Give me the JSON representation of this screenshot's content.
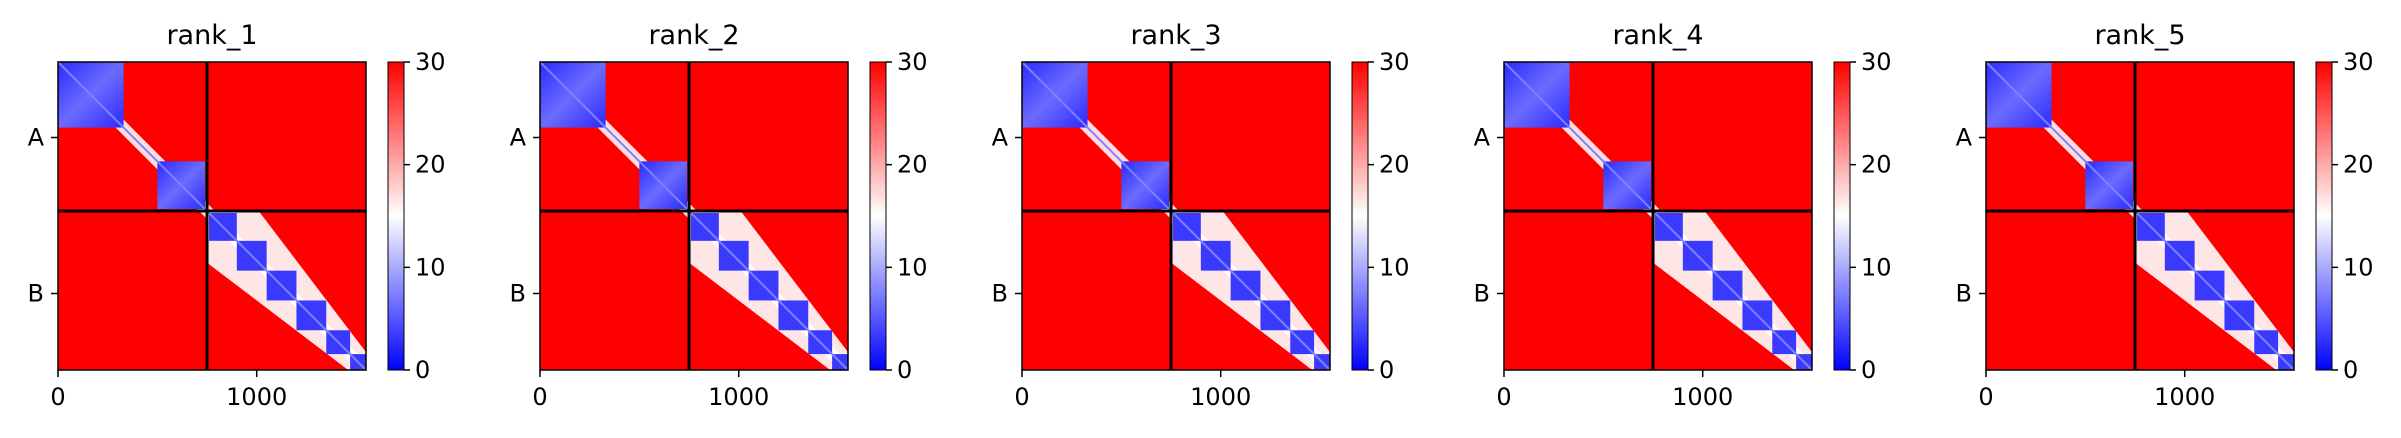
{
  "chart_data": {
    "type": "heatmap",
    "colormap": {
      "low": "#0000ff",
      "mid": "#ffffff",
      "high": "#ff0000"
    },
    "color_range": [
      0,
      30
    ],
    "colorbar_ticks": [
      "0",
      "10",
      "20",
      "30"
    ],
    "x_ticks": [
      {
        "value": 0,
        "label": "0"
      },
      {
        "value": 1000,
        "label": "1000"
      }
    ],
    "y_ticks": [
      {
        "value": 380,
        "label": "A"
      },
      {
        "value": 1165,
        "label": "B"
      }
    ],
    "matrix_size": 1550,
    "chain_boundary": 750,
    "panels": [
      {
        "title": "rank_1",
        "a_blocks": [
          [
            0,
            330
          ],
          [
            500,
            740
          ]
        ],
        "b_blocks": [
          [
            760,
            900
          ],
          [
            900,
            1050
          ],
          [
            1050,
            1200
          ],
          [
            1200,
            1350
          ],
          [
            1350,
            1470
          ],
          [
            1470,
            1550
          ]
        ]
      },
      {
        "title": "rank_2",
        "a_blocks": [
          [
            0,
            330
          ],
          [
            500,
            740
          ]
        ],
        "b_blocks": [
          [
            760,
            900
          ],
          [
            900,
            1050
          ],
          [
            1050,
            1200
          ],
          [
            1200,
            1350
          ],
          [
            1350,
            1470
          ],
          [
            1470,
            1550
          ]
        ]
      },
      {
        "title": "rank_3",
        "a_blocks": [
          [
            0,
            330
          ],
          [
            500,
            740
          ]
        ],
        "b_blocks": [
          [
            760,
            900
          ],
          [
            900,
            1050
          ],
          [
            1050,
            1200
          ],
          [
            1200,
            1350
          ],
          [
            1350,
            1470
          ],
          [
            1470,
            1550
          ]
        ]
      },
      {
        "title": "rank_4",
        "a_blocks": [
          [
            0,
            330
          ],
          [
            500,
            740
          ]
        ],
        "b_blocks": [
          [
            760,
            900
          ],
          [
            900,
            1050
          ],
          [
            1050,
            1200
          ],
          [
            1200,
            1350
          ],
          [
            1350,
            1470
          ],
          [
            1470,
            1550
          ]
        ]
      },
      {
        "title": "rank_5",
        "a_blocks": [
          [
            0,
            330
          ],
          [
            500,
            740
          ]
        ],
        "b_blocks": [
          [
            760,
            900
          ],
          [
            900,
            1050
          ],
          [
            1050,
            1200
          ],
          [
            1200,
            1350
          ],
          [
            1350,
            1470
          ],
          [
            1470,
            1550
          ]
        ]
      }
    ]
  }
}
